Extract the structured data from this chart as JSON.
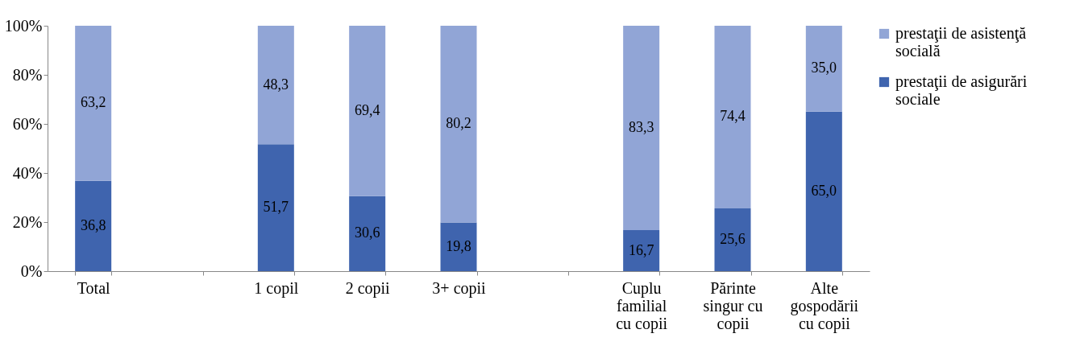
{
  "chart_data": {
    "type": "bar",
    "stacked": true,
    "legend": "right",
    "grid": false,
    "categories": [
      "Total",
      null,
      "1 copil",
      "2 copii",
      "3+ copii",
      null,
      "Cuplu\nfamilial\ncu copii",
      "Părinte\nsingur cu\ncopii",
      "Alte\ngospodării\ncu copii"
    ],
    "series": [
      {
        "name": "prestaţii de asigurări sociale",
        "color": "#3f64ae",
        "values": [
          36.8,
          null,
          51.7,
          30.6,
          19.8,
          null,
          16.7,
          25.6,
          65.0
        ],
        "value_labels": [
          "36,8",
          null,
          "51,7",
          "30,6",
          "19,8",
          null,
          "16,7",
          "25,6",
          "65,0"
        ]
      },
      {
        "name": "prestaţii de asistenţă socială",
        "color": "#91a5d6",
        "values": [
          63.2,
          null,
          48.3,
          69.4,
          80.2,
          null,
          83.3,
          74.4,
          35.0
        ],
        "value_labels": [
          "63,2",
          null,
          "48,3",
          "69,4",
          "80,2",
          null,
          "83,3",
          "74,4",
          "35,0"
        ]
      }
    ],
    "ylim": [
      0,
      100
    ],
    "yticks": [
      {
        "value": 0,
        "label": "0%"
      },
      {
        "value": 20,
        "label": "20%"
      },
      {
        "value": 40,
        "label": "40%"
      },
      {
        "value": 60,
        "label": "60%"
      },
      {
        "value": 80,
        "label": "80%"
      },
      {
        "value": 100,
        "label": "100%"
      }
    ]
  }
}
